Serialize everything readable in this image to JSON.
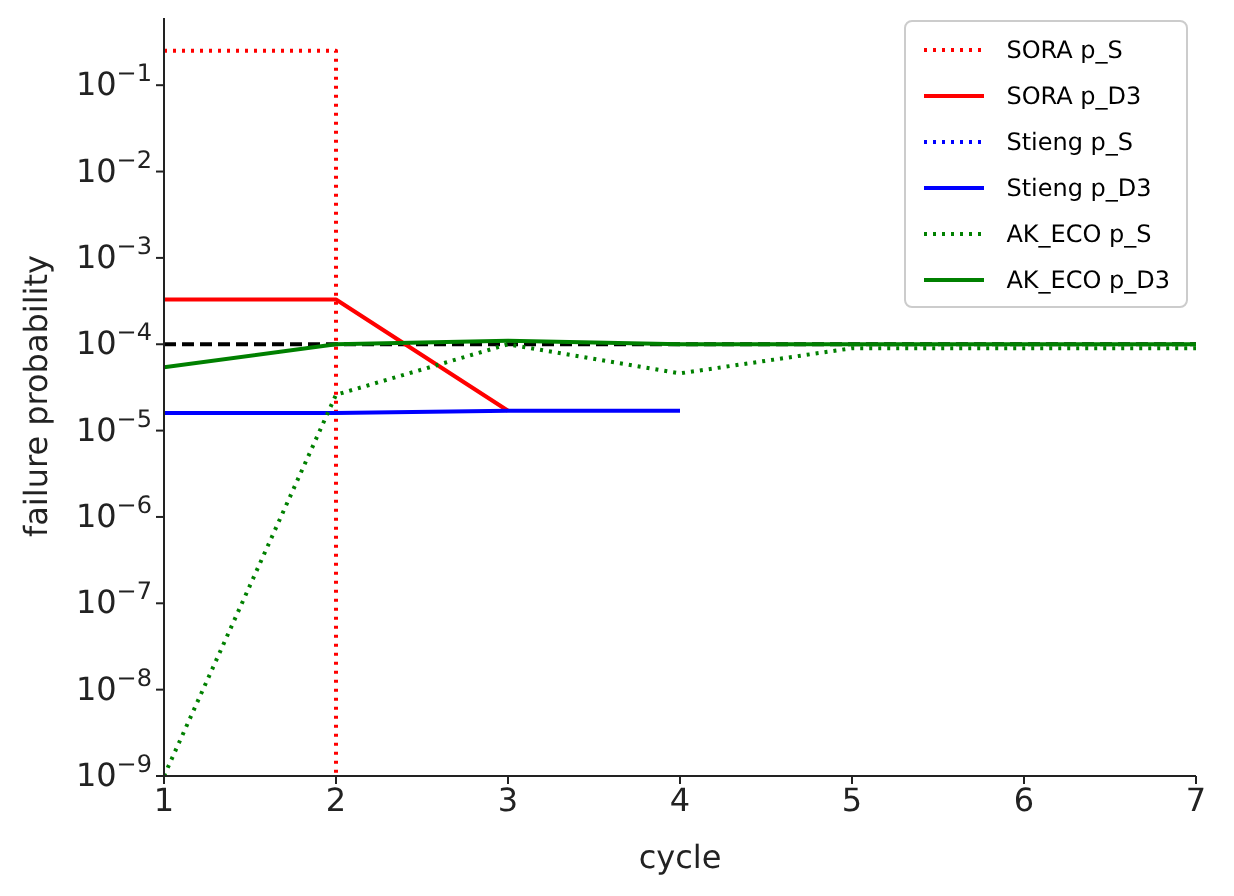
{
  "chart_data": {
    "type": "line",
    "xlabel": "cycle",
    "ylabel": "failure probability",
    "log": "y",
    "grid": false,
    "legend": "top right",
    "marker": "none",
    "xlim": [
      1,
      7
    ],
    "xticks": [
      1,
      2,
      3,
      4,
      5,
      6,
      7
    ],
    "ylim": [
      1e-09,
      0.6
    ],
    "yticks": [
      {
        "value": 1e-09,
        "label": "10$^{−9}$"
      },
      {
        "value": 1e-08,
        "label": "10$^{−8}$"
      },
      {
        "value": 1e-07,
        "label": "10$^{−7}$"
      },
      {
        "value": 1e-06,
        "label": "10$^{−6}$"
      },
      {
        "value": 1e-05,
        "label": "10$^{−5}$"
      },
      {
        "value": 0.0001,
        "label": "10$^{−4}$"
      },
      {
        "value": 0.001,
        "label": "10$^{−3}$"
      },
      {
        "value": 0.01,
        "label": "10$^{−2}$"
      },
      {
        "value": 0.1,
        "label": "10$^{−1}$"
      }
    ],
    "ref_lines": [
      {
        "axis": "y",
        "value": 0.0001,
        "color": "#000000",
        "line_style": "dashed"
      }
    ],
    "series": [
      {
        "name": "SORA p_S",
        "color": "#ff0000",
        "line_style": "dotted",
        "x": [
          1,
          2,
          2
        ],
        "values": [
          0.25,
          0.25,
          1e-09
        ]
      },
      {
        "name": "SORA p_D3",
        "color": "#ff0000",
        "line_style": "solid",
        "x": [
          1,
          2,
          3
        ],
        "values": [
          0.00033,
          0.00033,
          1.7e-05
        ]
      },
      {
        "name": "Stieng p_S",
        "color": "#0000ff",
        "line_style": "dotted"
      },
      {
        "name": "Stieng p_D3",
        "color": "#0000ff",
        "line_style": "solid",
        "x": [
          1,
          2,
          3,
          4
        ],
        "values": [
          1.6e-05,
          1.6e-05,
          1.7e-05,
          1.7e-05
        ]
      },
      {
        "name": "AK_ECO p_S",
        "color": "#008000",
        "line_style": "dotted",
        "x": [
          1,
          2,
          3,
          4,
          5,
          6,
          7
        ],
        "values": [
          1e-09,
          2.6e-05,
          0.0001,
          4.6e-05,
          9e-05,
          9e-05,
          9e-05
        ]
      },
      {
        "name": "AK_ECO p_D3",
        "color": "#008000",
        "line_style": "solid",
        "x": [
          1,
          2,
          3,
          4,
          5,
          6,
          7
        ],
        "values": [
          5.4e-05,
          0.0001,
          0.00011,
          0.0001,
          0.0001,
          0.0001,
          0.0001
        ]
      }
    ]
  }
}
